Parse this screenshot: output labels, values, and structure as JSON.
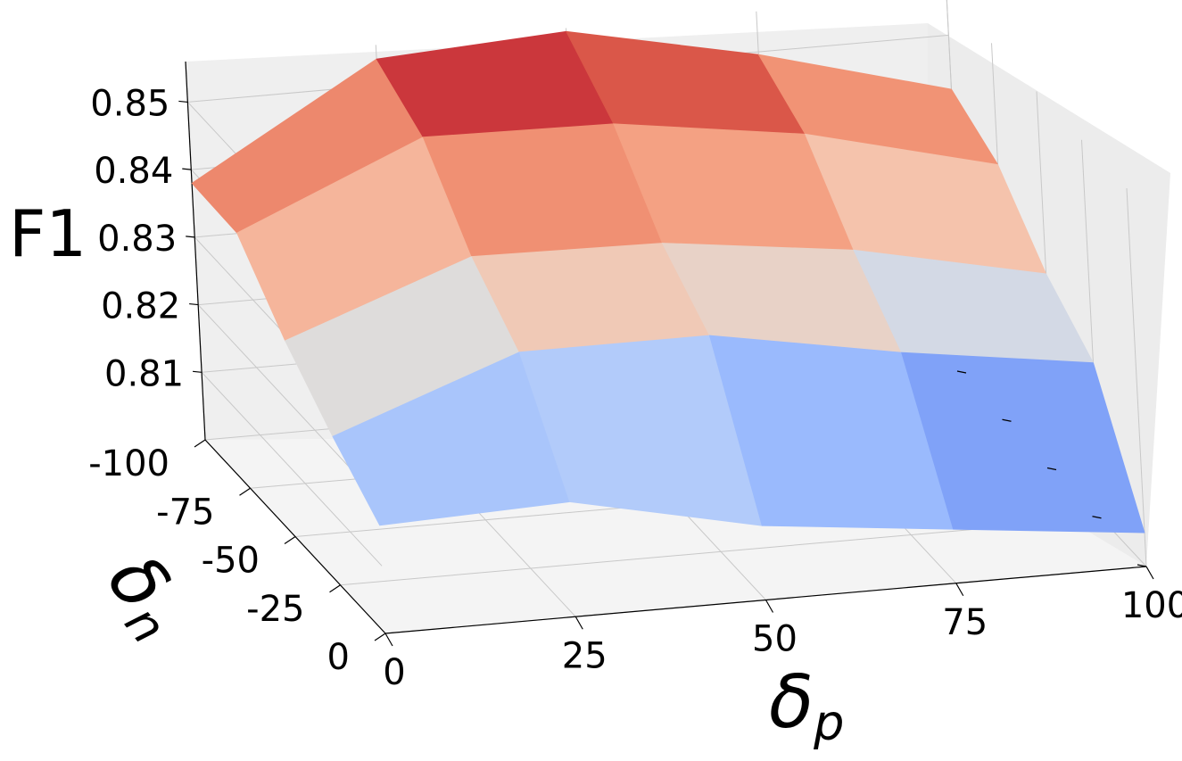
{
  "chart_data": {
    "type": "surface",
    "title": "",
    "xlabel": "δ_p",
    "ylabel": "δ_n",
    "zlabel": "F1",
    "x": [
      0,
      25,
      50,
      75,
      100
    ],
    "y": [
      -100,
      -75,
      -50,
      -25,
      0
    ],
    "x_tick_labels": [
      "0",
      "25",
      "50",
      "75",
      "100"
    ],
    "y_tick_labels": [
      "-100",
      "-75",
      "-50",
      "-25",
      "0"
    ],
    "z_tick_labels": [
      "0.81",
      "0.82",
      "0.83",
      "0.84",
      "0.85"
    ],
    "zlim": [
      0.8,
      0.856
    ],
    "colormap": "coolwarm",
    "grid": true,
    "z": [
      [
        0.838,
        0.8539,
        0.8555,
        0.8496,
        0.842
      ],
      [
        0.8378,
        0.8495,
        0.849,
        0.845,
        0.838
      ],
      [
        0.829,
        0.839,
        0.8385,
        0.835,
        0.829
      ],
      [
        0.822,
        0.832,
        0.832,
        0.827,
        0.823
      ],
      [
        0.816,
        0.817,
        0.811,
        0.808,
        0.805
      ]
    ]
  }
}
